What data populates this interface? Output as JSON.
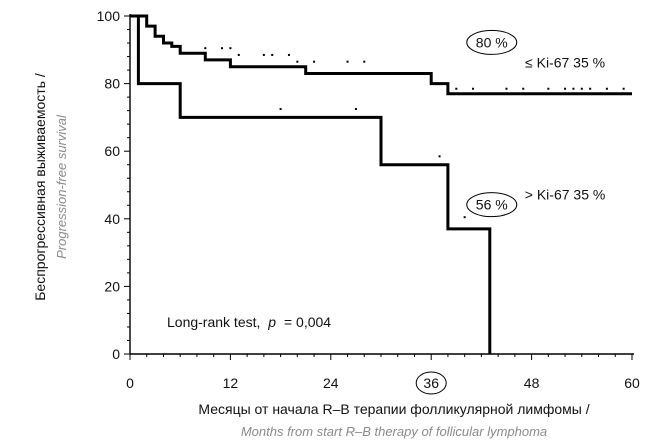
{
  "chart_data": {
    "type": "line",
    "xlabel": "Месяцы от начала R–B терапии фолликулярной лимфомы /",
    "xlabel_en": "Months from start R–B therapy of follicular lymphoma",
    "ylabel": "Беспрогрессивная выживаемость /",
    "ylabel_en": "Progression-free survival",
    "xlim": [
      0,
      60
    ],
    "ylim": [
      0,
      100
    ],
    "x_ticks": [
      "0",
      "12",
      "24",
      "36",
      "48",
      "60"
    ],
    "y_ticks": [
      "0",
      "20",
      "40",
      "60",
      "80",
      "100"
    ],
    "highlighted_x_tick": "36",
    "step": true,
    "series": [
      {
        "name": "≤ Ki-67 35 %",
        "color": "#000000",
        "points": [
          [
            0,
            100
          ],
          [
            2,
            100
          ],
          [
            2,
            97
          ],
          [
            3,
            97
          ],
          [
            3,
            94
          ],
          [
            4,
            94
          ],
          [
            4,
            92
          ],
          [
            5,
            92
          ],
          [
            5,
            91
          ],
          [
            6,
            91
          ],
          [
            6,
            89
          ],
          [
            9,
            89
          ],
          [
            9,
            87
          ],
          [
            12,
            87
          ],
          [
            12,
            85
          ],
          [
            21,
            85
          ],
          [
            21,
            83
          ],
          [
            36,
            83
          ],
          [
            36,
            80
          ],
          [
            38,
            80
          ],
          [
            38,
            77
          ],
          [
            60,
            77
          ]
        ],
        "censored": [
          [
            9,
            89
          ],
          [
            11,
            89
          ],
          [
            12,
            89
          ],
          [
            13,
            87
          ],
          [
            16,
            87
          ],
          [
            17,
            87
          ],
          [
            19,
            87
          ],
          [
            20,
            85
          ],
          [
            22,
            85
          ],
          [
            26,
            85
          ],
          [
            28,
            85
          ],
          [
            39,
            77
          ],
          [
            41,
            77
          ],
          [
            45,
            77
          ],
          [
            47,
            77
          ],
          [
            50,
            77
          ],
          [
            52,
            77
          ],
          [
            53,
            77
          ],
          [
            54,
            77
          ],
          [
            55,
            77
          ],
          [
            57,
            77
          ],
          [
            59,
            77
          ]
        ]
      },
      {
        "name": "> Ki-67 35 %",
        "color": "#000000",
        "points": [
          [
            0,
            100
          ],
          [
            1,
            100
          ],
          [
            1,
            80
          ],
          [
            6,
            80
          ],
          [
            6,
            70
          ],
          [
            30,
            70
          ],
          [
            30,
            56
          ],
          [
            38,
            56
          ],
          [
            38,
            37
          ],
          [
            43,
            37
          ],
          [
            43,
            0
          ]
        ],
        "censored": [
          [
            18,
            71
          ],
          [
            27,
            71
          ],
          [
            37,
            57
          ],
          [
            40,
            39
          ]
        ]
      }
    ],
    "annotations": [
      {
        "text": "80 %",
        "circled": true,
        "x": 43,
        "y": 91
      },
      {
        "text": "56 %",
        "circled": true,
        "x": 43,
        "y": 43
      },
      {
        "text": "≤ Ki-67 35 %",
        "circled": false,
        "x": 52,
        "y": 85
      },
      {
        "text": "> Ki-67 35 %",
        "circled": false,
        "x": 52,
        "y": 46
      }
    ],
    "test_prefix": "Long-rank test,",
    "test_p_symbol": "p",
    "test_value": "= 0,004"
  }
}
